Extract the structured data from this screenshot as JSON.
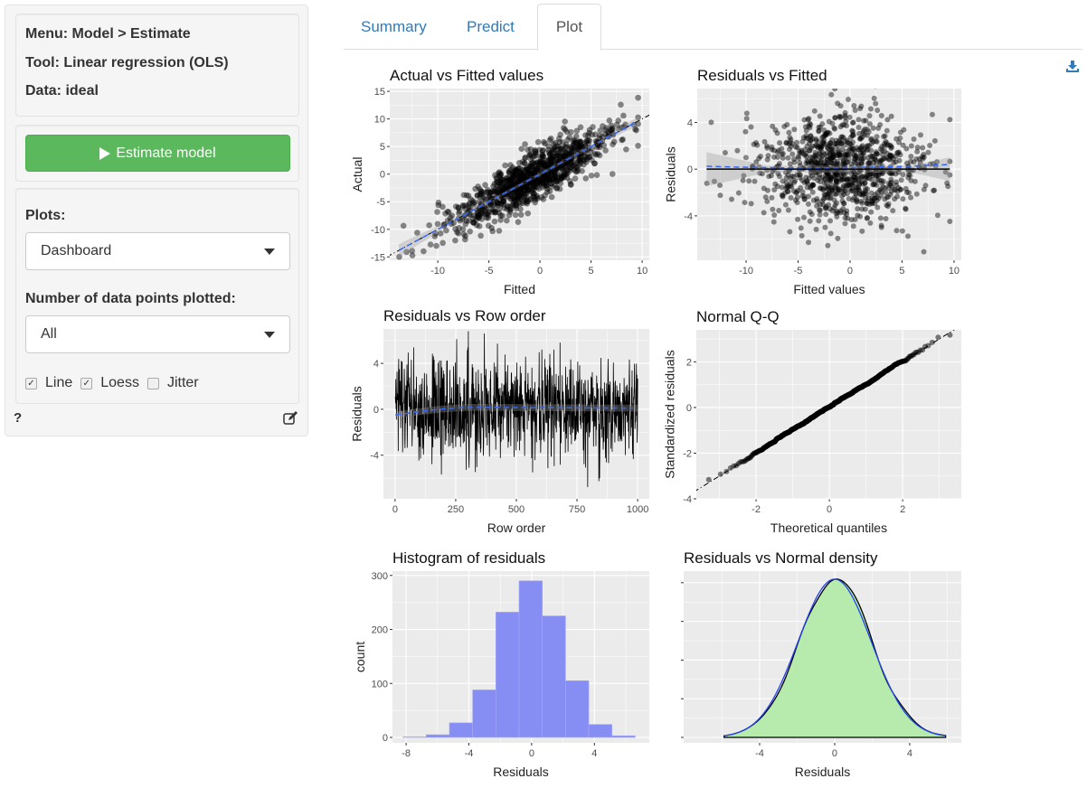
{
  "sidebar": {
    "menu": "Menu: Model > Estimate",
    "tool": "Tool: Linear regression (OLS)",
    "data": "Data: ideal",
    "estimate_button": "Estimate model",
    "plots_label": "Plots:",
    "plots_value": "Dashboard",
    "points_label": "Number of data points plotted:",
    "points_value": "All",
    "checkboxes": [
      {
        "label": "Line",
        "checked": true
      },
      {
        "label": "Loess",
        "checked": true
      },
      {
        "label": "Jitter",
        "checked": false
      }
    ],
    "help": "?"
  },
  "tabs": [
    {
      "label": "Summary",
      "active": false
    },
    {
      "label": "Predict",
      "active": false
    },
    {
      "label": "Plot",
      "active": true
    }
  ],
  "icons": {
    "download": "download-icon",
    "edit": "edit-icon",
    "play": "play-icon"
  },
  "colors": {
    "accent": "#337ab7",
    "button": "#5cb85c",
    "panel": "#ebebeb",
    "histogram": "#878ef3",
    "density_fill": "#b6ebad",
    "loess": "#3366ff"
  },
  "chart_data": [
    {
      "type": "scatter",
      "title": "Actual vs Fitted values",
      "xlabel": "Fitted",
      "ylabel": "Actual",
      "xlim": [
        -14.7,
        10.7
      ],
      "ylim": [
        -15.6,
        15.5
      ],
      "xticks": [
        "-10",
        "-5",
        "0",
        "5",
        "10"
      ],
      "yticks": [
        "-15",
        "-10",
        "-5",
        "0",
        "5",
        "10",
        "15"
      ],
      "n_points": 1000,
      "reference_line": "y = x",
      "smoother": "loess",
      "grid": true
    },
    {
      "type": "scatter",
      "title": "Residuals vs Fitted",
      "xlabel": "Fitted values",
      "ylabel": "Residuals",
      "xlim": [
        -14.7,
        10.7
      ],
      "ylim": [
        -7.8,
        6.9
      ],
      "xticks": [
        "-10",
        "-5",
        "0",
        "5",
        "10"
      ],
      "yticks": [
        "-4",
        "0",
        "4"
      ],
      "n_points": 1000,
      "reference_line": "y = 0",
      "smoother": "loess",
      "grid": true
    },
    {
      "type": "line",
      "title": "Residuals vs Row order",
      "xlabel": "Row order",
      "ylabel": "Residuals",
      "xlim": [
        -48,
        1048
      ],
      "ylim": [
        -7.8,
        7
      ],
      "xticks": [
        "0",
        "250",
        "500",
        "750",
        "1000"
      ],
      "yticks": [
        "-4",
        "0",
        "4"
      ],
      "n_points": 1000,
      "smoother": "loess",
      "grid": true
    },
    {
      "type": "scatter",
      "title": "Normal Q-Q",
      "xlabel": "Theoretical quantiles",
      "ylabel": "Standardized residuals",
      "xlim": [
        -3.63,
        3.6
      ],
      "ylim": [
        -4,
        3.4
      ],
      "xticks": [
        "-2",
        "0",
        "2"
      ],
      "yticks": [
        "-4",
        "-2",
        "0",
        "2"
      ],
      "n_points": 1000,
      "reference_line": "y = x",
      "grid": true
    },
    {
      "type": "bar",
      "title": "Histogram of residuals",
      "xlabel": "Residuals",
      "ylabel": "count",
      "xlim": [
        -8.87,
        7.5
      ],
      "ylim": [
        -10,
        308
      ],
      "xticks": [
        "-8",
        "-4",
        "0",
        "4"
      ],
      "yticks": [
        "0",
        "100",
        "200",
        "300"
      ],
      "bin_edges": [
        -8.2,
        -6.72,
        -5.24,
        -3.76,
        -2.28,
        -0.8,
        0.68,
        2.16,
        3.64,
        5.12,
        6.6
      ],
      "values": [
        1,
        5,
        27,
        88,
        232,
        290,
        225,
        105,
        24,
        3
      ],
      "grid": true
    },
    {
      "type": "area",
      "title": "Residuals vs Normal density",
      "xlabel": "Residuals",
      "ylabel": "",
      "xlim": [
        -8.05,
        6.75
      ],
      "ylim": [
        -0.007,
        0.215
      ],
      "xticks": [
        "-4",
        "0",
        "4"
      ],
      "yticks": [
        "",
        "",
        "",
        "",
        ""
      ],
      "series": [
        {
          "kind": "kernel density of residuals"
        },
        {
          "kind": "normal density",
          "mean": 0,
          "sd": 1.95
        }
      ],
      "grid": true
    }
  ]
}
